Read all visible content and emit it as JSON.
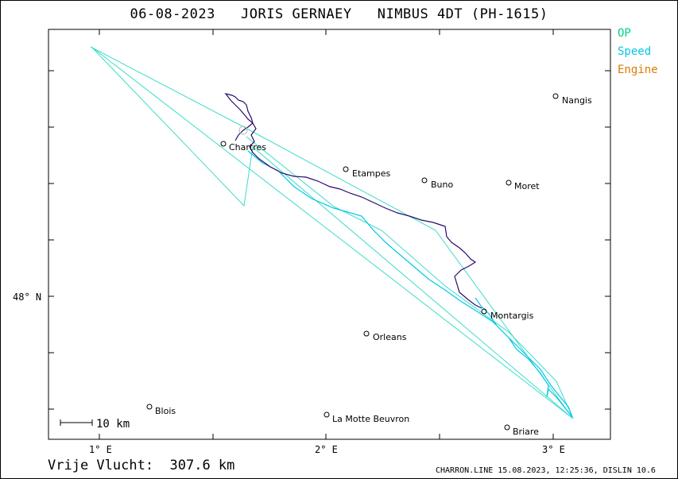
{
  "title": "06-08-2023   JORIS GERNAEY   NIMBUS 4DT (PH-1615)",
  "legend": [
    {
      "label": "OP",
      "color": "#00d27a"
    },
    {
      "label": "Speed",
      "color": "#00c8e6"
    },
    {
      "label": "Engine",
      "color": "#e07800"
    }
  ],
  "axes": {
    "x_ticks": [
      "1° E",
      "2° E",
      "3° E"
    ],
    "y_ticks": [
      "48° N"
    ]
  },
  "towns": [
    {
      "name": "Nangis"
    },
    {
      "name": "Chartres"
    },
    {
      "name": "Etampes"
    },
    {
      "name": "Buno"
    },
    {
      "name": "Moret"
    },
    {
      "name": "Montargis"
    },
    {
      "name": "Orleans"
    },
    {
      "name": "Blois"
    },
    {
      "name": "La Motte Beuvron"
    },
    {
      "name": "Briare"
    }
  ],
  "scale_bar": "10 km",
  "distance": "Vrije Vlucht:  307.6 km",
  "footer": "CHARRON.LINE 15.08.2023, 12:25:36, DISLIN 10.6",
  "colors": {
    "task": "#3cdcc8",
    "track": "#2a0a6e",
    "track_speed": "#00c8e6"
  }
}
